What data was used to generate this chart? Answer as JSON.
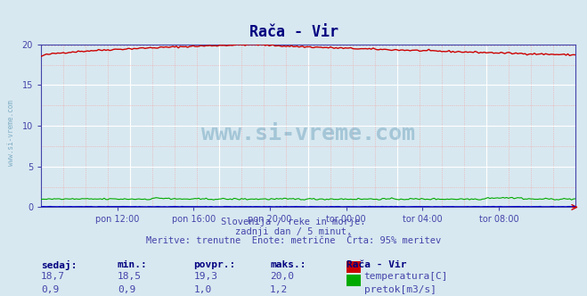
{
  "title": "Rača - Vir",
  "bg_color": "#d8e8f0",
  "plot_bg_color": "#d8e8f0",
  "grid_color_major": "#ffffff",
  "grid_color_minor": "#f0c8c8",
  "ylim": [
    0,
    20
  ],
  "yticks": [
    0,
    5,
    10,
    15,
    20
  ],
  "xlabel_ticks": [
    "pon 12:00",
    "pon 16:00",
    "pon 20:00",
    "tor 00:00",
    "tor 04:00",
    "tor 08:00"
  ],
  "n_points": 289,
  "temp_min": 18.5,
  "temp_max": 20.0,
  "temp_current": 18.7,
  "temp_avg": 19.3,
  "flow_min": 0.9,
  "flow_max": 1.2,
  "flow_current": 0.9,
  "flow_avg": 1.0,
  "temp_color": "#cc0000",
  "flow_color": "#00aa00",
  "level_color": "#0000cc",
  "dotted_color": "#cc0000",
  "title_color": "#000080",
  "axis_color": "#4444aa",
  "text_color": "#4444aa",
  "watermark_color": "#4488aa",
  "subtitle_lines": [
    "Slovenija / reke in morje.",
    "zadnji dan / 5 minut.",
    "Meritve: trenutne  Enote: metrične  Črta: 95% meritev"
  ],
  "legend_labels": [
    "temperatura[C]",
    "pretok[m3/s]"
  ],
  "legend_colors": [
    "#cc0000",
    "#00aa00"
  ],
  "table_headers": [
    "sedaj:",
    "min.:",
    "povpr.:",
    "maks.:",
    "Rača - Vir"
  ],
  "table_row1": [
    "18,7",
    "18,5",
    "19,3",
    "20,0"
  ],
  "table_row2": [
    "0,9",
    "0,9",
    "1,0",
    "1,2"
  ]
}
